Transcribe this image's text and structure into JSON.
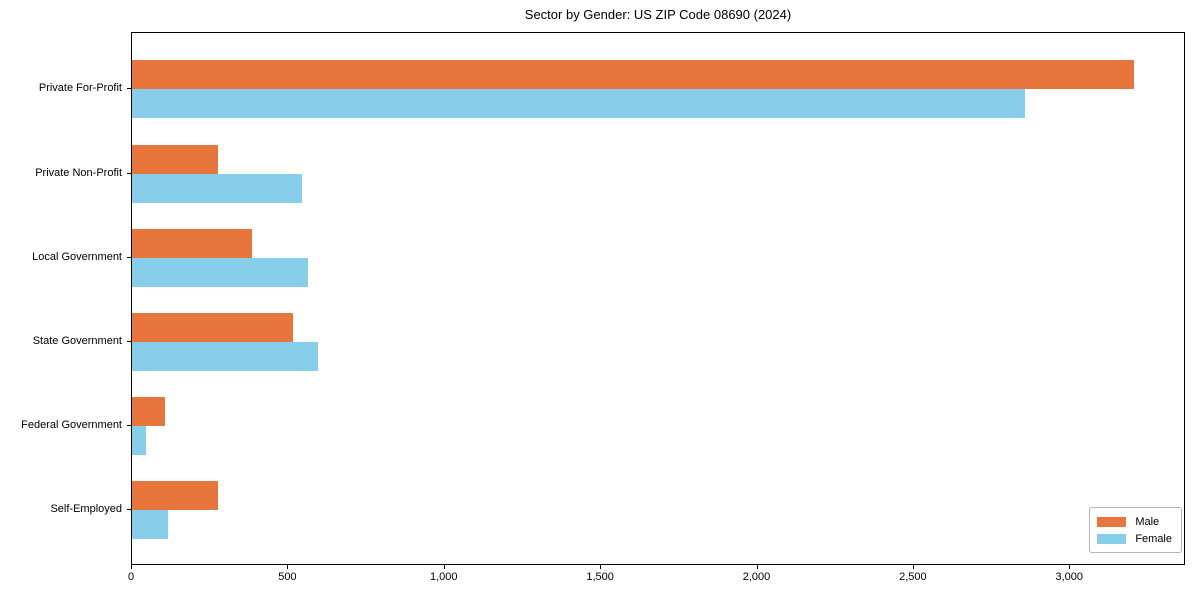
{
  "title": "Sector by Gender: US ZIP Code 08690 (2024)",
  "chart_data": {
    "type": "bar",
    "orientation": "horizontal",
    "title": "Sector by Gender: US ZIP Code 08690 (2024)",
    "xlabel": "",
    "ylabel": "",
    "categories": [
      "Private For-Profit",
      "Private Non-Profit",
      "Local Government",
      "State Government",
      "Federal Government",
      "Self-Employed"
    ],
    "series": [
      {
        "name": "Male",
        "color": "#e8763c",
        "values": [
          3210,
          275,
          385,
          515,
          105,
          275
        ]
      },
      {
        "name": "Female",
        "color": "#87ceeb",
        "values": [
          2860,
          545,
          565,
          595,
          45,
          115
        ]
      }
    ],
    "xlim": [
      0,
      3370
    ],
    "xticks": [
      0,
      500,
      1000,
      1500,
      2000,
      2500,
      3000
    ],
    "xtick_labels": [
      "0",
      "500",
      "1,000",
      "1,500",
      "2,000",
      "2,500",
      "3,000"
    ],
    "grid": false,
    "legend_position": "lower right",
    "legend": {
      "entries": [
        {
          "label": "Male",
          "color": "#e8763c"
        },
        {
          "label": "Female",
          "color": "#87ceeb"
        }
      ]
    }
  },
  "colors": {
    "axis": "#000000",
    "background": "#ffffff",
    "legend_border": "#b5b5b5"
  }
}
